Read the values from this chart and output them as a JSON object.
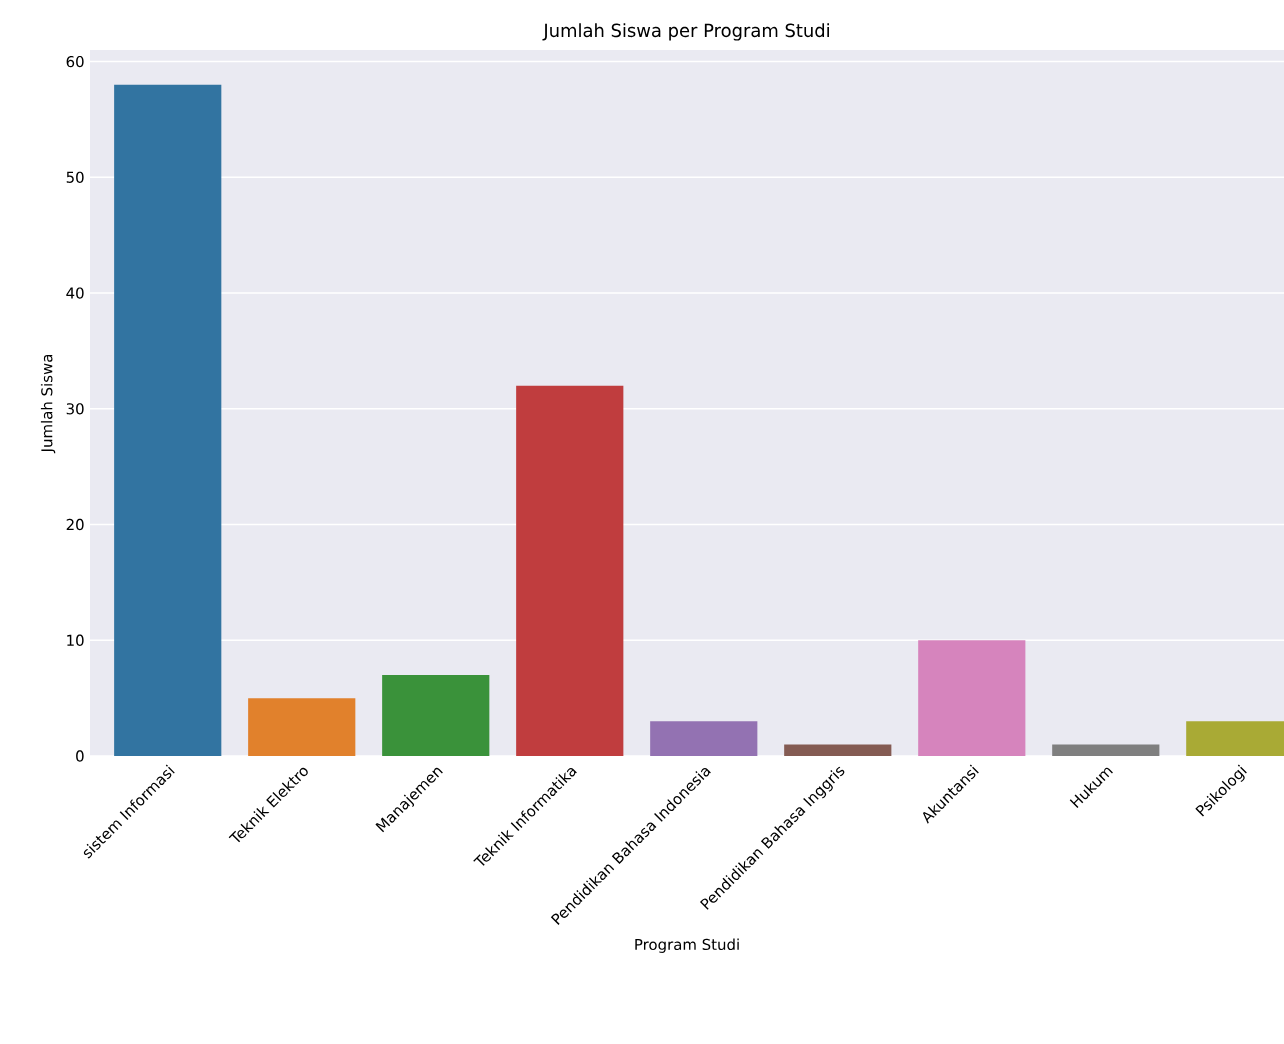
{
  "chart_data": {
    "type": "bar",
    "title": "Jumlah Siswa per Program Studi",
    "xlabel": "Program Studi",
    "ylabel": "Jumlah Siswa",
    "categories": [
      "sistem Informasi",
      "Teknik Elektro",
      "Manajemen",
      "Teknik Informatika",
      "Pendidikan Bahasa Indonesia",
      "Pendidikan Bahasa Inggris",
      "Akuntansi",
      "Hukum",
      "Psikologi"
    ],
    "values": [
      58,
      5,
      7,
      32,
      3,
      1,
      10,
      1,
      3
    ],
    "colors": [
      "#3274a1",
      "#e1812c",
      "#3a923a",
      "#c03d3e",
      "#9372b2",
      "#845b53",
      "#d684bd",
      "#7f7f7f",
      "#a9aa35"
    ],
    "ylim": [
      0,
      61
    ],
    "yticks": [
      0,
      10,
      20,
      30,
      40,
      50,
      60
    ],
    "grid": "y"
  }
}
